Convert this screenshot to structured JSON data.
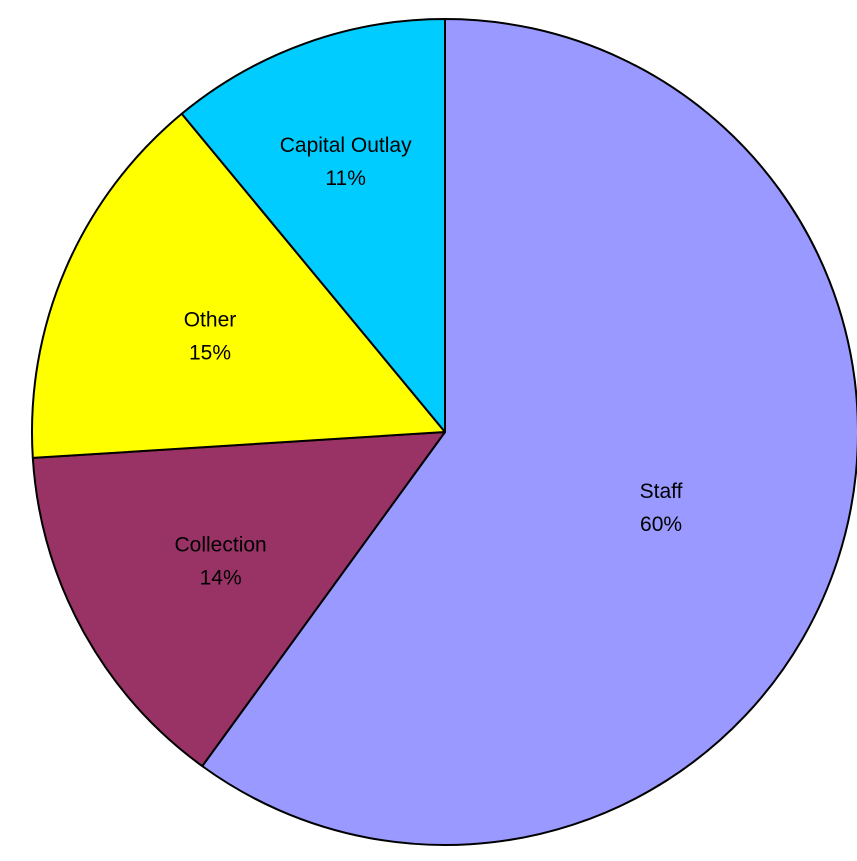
{
  "chart_data": {
    "type": "pie",
    "start": "12 o'clock, clockwise",
    "slices": [
      {
        "label": "Staff",
        "percent_label": "60%",
        "value": 60,
        "color": "#9999ff"
      },
      {
        "label": "Collection",
        "percent_label": "14%",
        "value": 14,
        "color": "#993366"
      },
      {
        "label": "Other",
        "percent_label": "15%",
        "value": 15,
        "color": "#ffff00"
      },
      {
        "label": "Capital Outlay",
        "percent_label": "11%",
        "value": 11,
        "color": "#00ccff"
      }
    ]
  }
}
